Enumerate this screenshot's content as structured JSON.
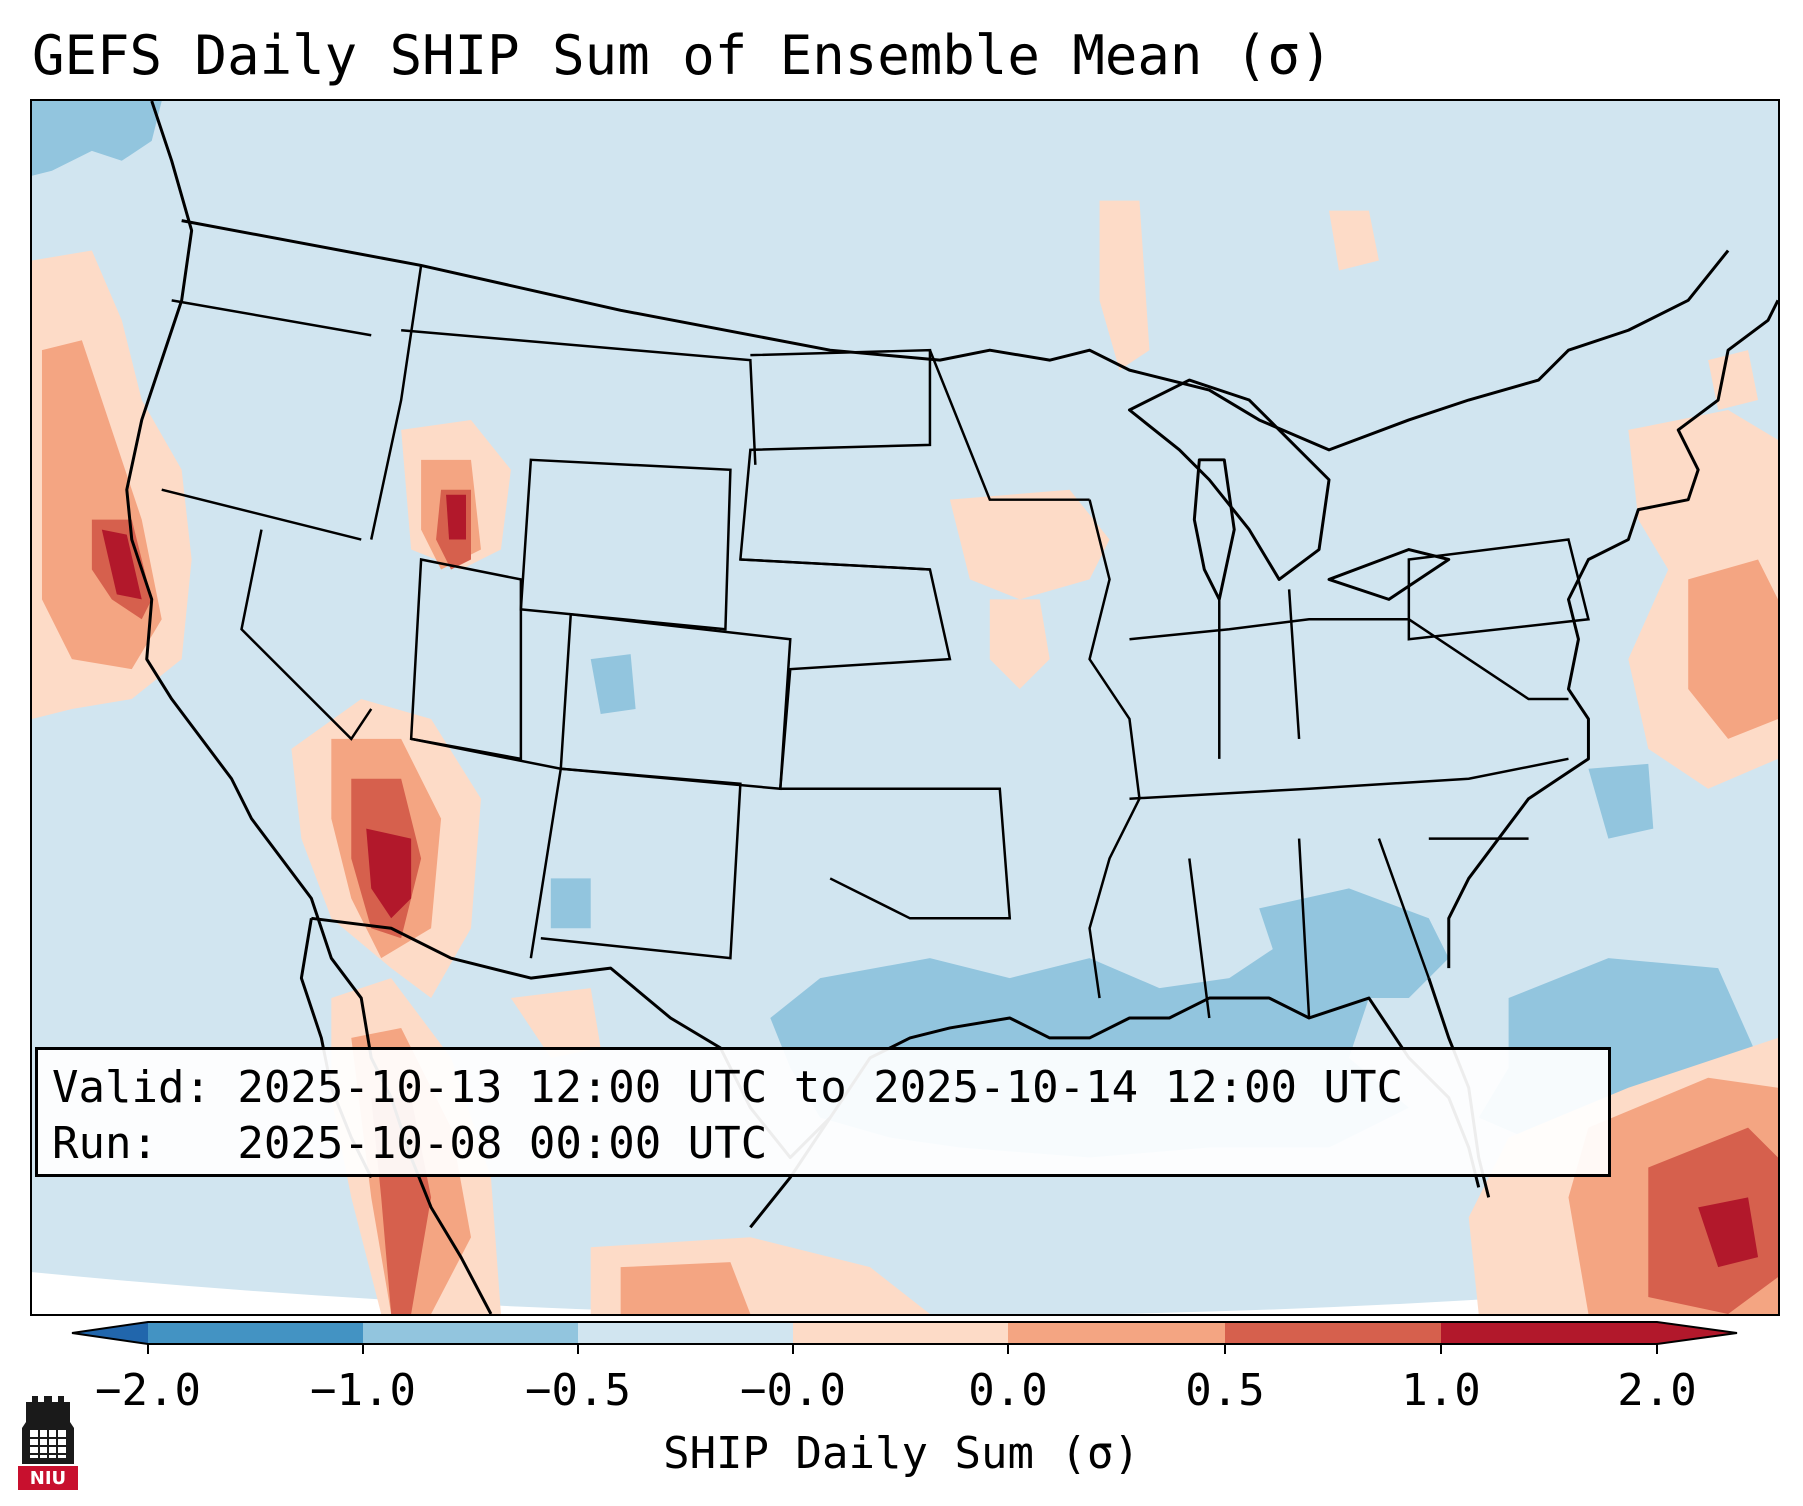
{
  "title": "GEFS Daily SHIP Sum of Ensemble Mean (σ)",
  "info": {
    "valid": "Valid: 2025-10-13 12:00 UTC to 2025-10-14 12:00 UTC",
    "run": "Run:   2025-10-08 00:00 UTC"
  },
  "colorbar": {
    "label": "SHIP Daily Sum (σ)",
    "ticks": [
      "−2.0",
      "−1.0",
      "−0.5",
      "−0.0",
      "0.0",
      "0.5",
      "1.0",
      "2.0"
    ],
    "colors": [
      "#4393c3",
      "#92c5de",
      "#d1e5f0",
      "#fddbc7",
      "#f4a582",
      "#d6604d",
      "#b2182b"
    ],
    "extend_low_color": "#2166ac",
    "extend_high_color": "#b2182b"
  },
  "logo": {
    "text": "NIU",
    "icon": "niu-castle-icon"
  },
  "map": {
    "projection": "conus",
    "background_color": "#d1e5f0",
    "features": [
      "california-coast-anomaly",
      "utah-anomaly",
      "arizona-nevada-anomaly",
      "gulf-coast-negative-anomaly",
      "atlantic-negative-anomaly",
      "caribbean-positive-anomaly",
      "east-coast-positive-anomaly"
    ]
  }
}
